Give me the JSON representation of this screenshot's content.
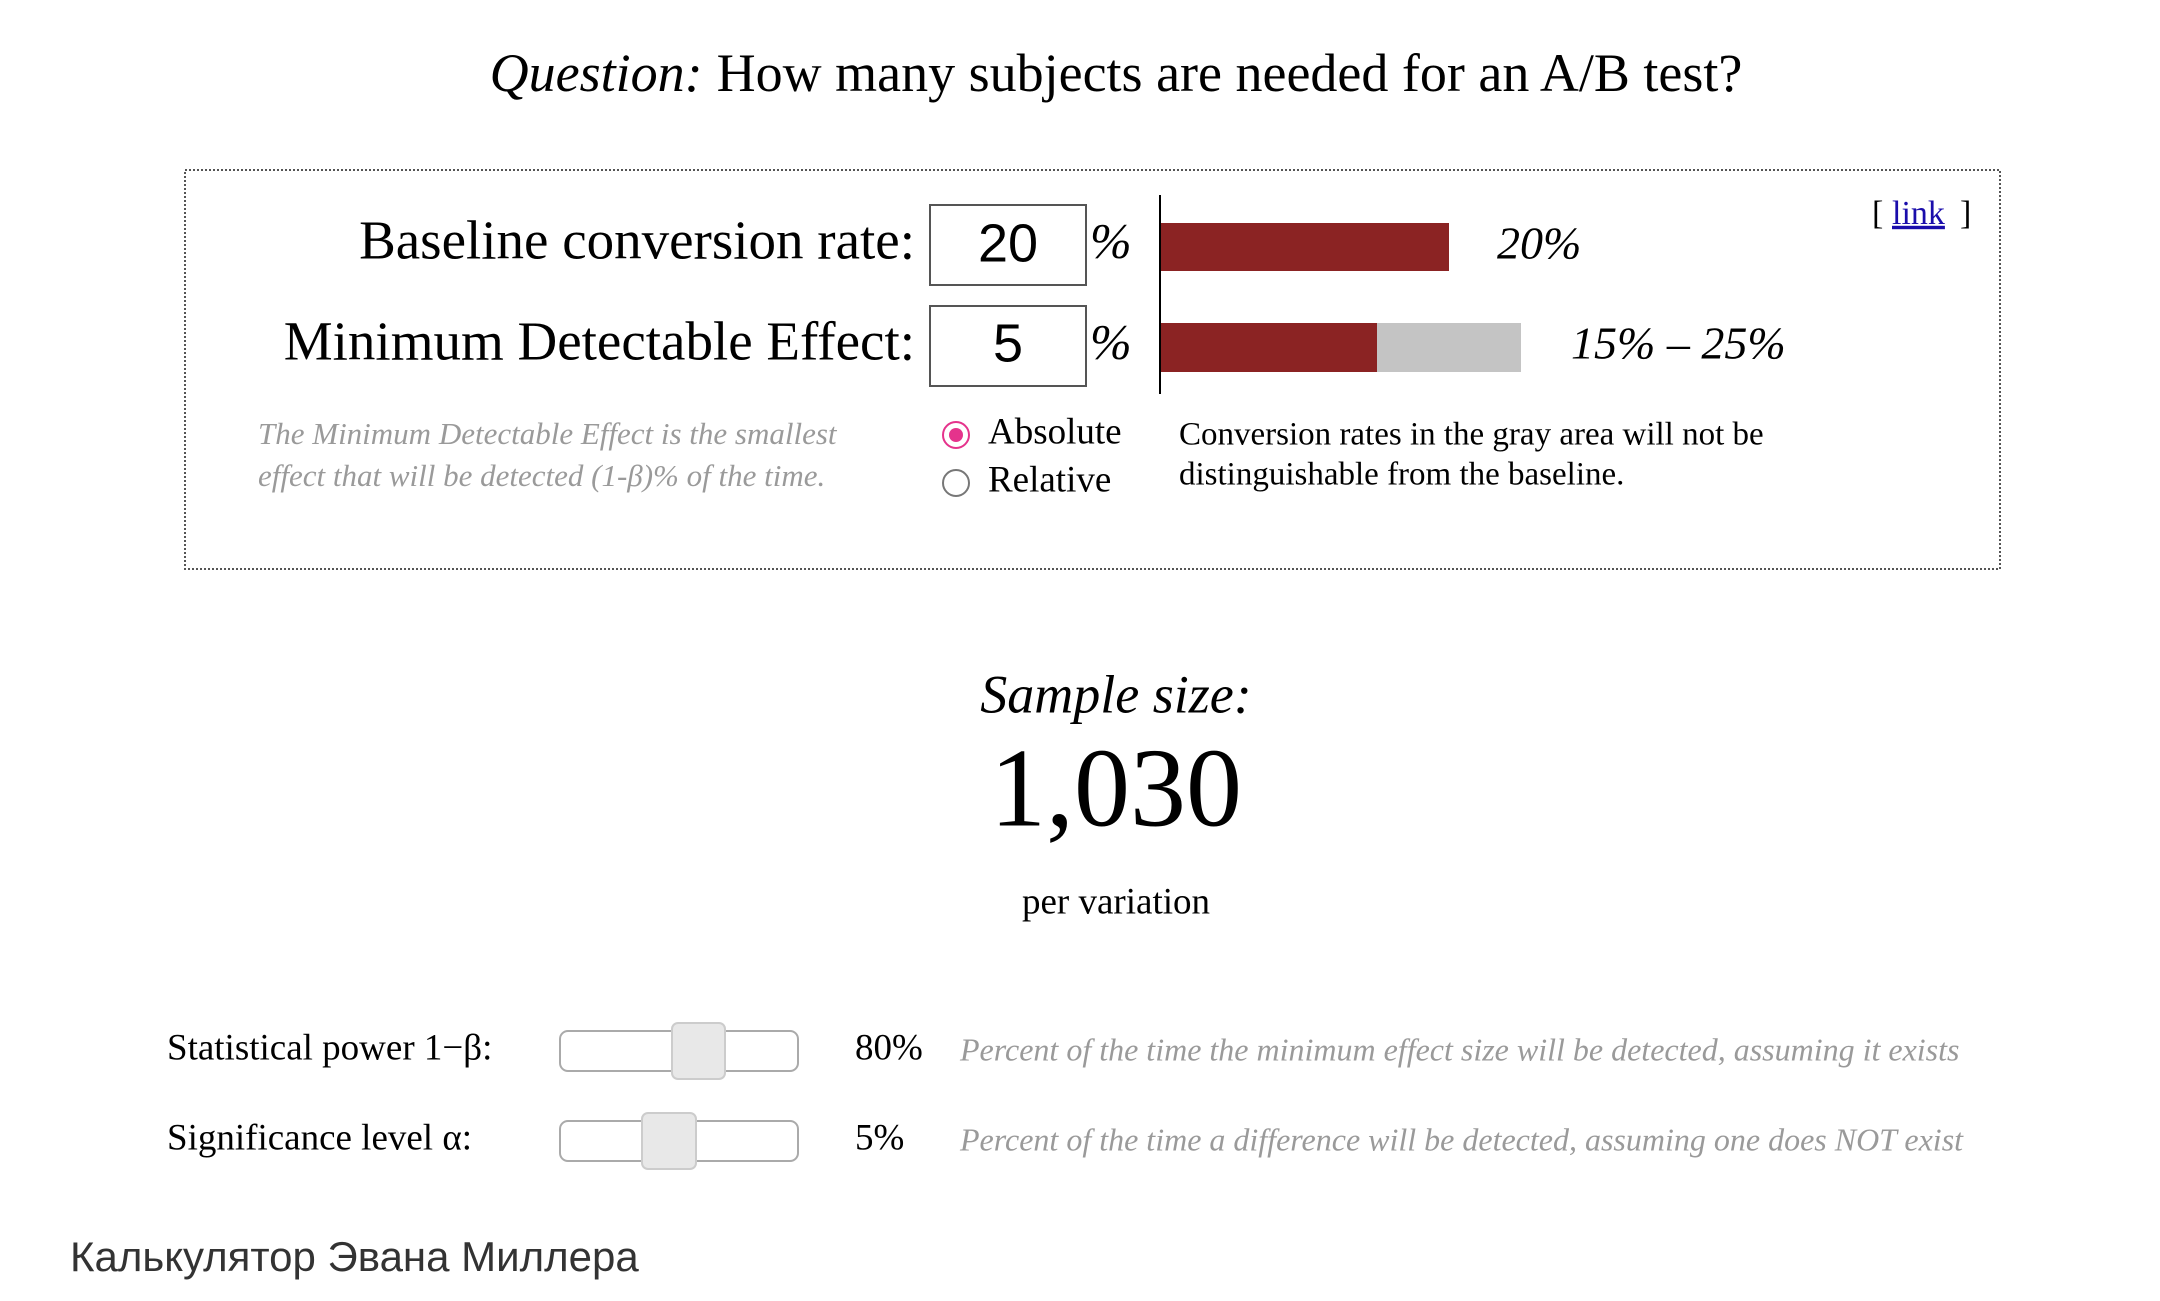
{
  "title": {
    "prefix": "Question:",
    "text": "How many subjects are needed for an A/B test?"
  },
  "link": {
    "open": "[",
    "text": "link",
    "close": "]"
  },
  "baseline": {
    "label": "Baseline conversion rate:",
    "value": 20,
    "unit": "%",
    "bar_label": "20%"
  },
  "mde": {
    "label": "Minimum Detectable Effect:",
    "value": 5,
    "unit": "%",
    "bar_label": "15% – 25%"
  },
  "mde_note": [
    "The Minimum Detectable Effect is the smallest",
    "effect that will be detected (1-β)% of the time."
  ],
  "mode_options": [
    {
      "label": "Absolute",
      "selected": true
    },
    {
      "label": "Relative",
      "selected": false
    }
  ],
  "gray_note": [
    "Conversion rates in the gray area will not be",
    "distinguishable from the baseline."
  ],
  "result": {
    "heading": "Sample size:",
    "value": "1,030",
    "unit": "per variation"
  },
  "parameters": [
    {
      "label": "Statistical power 1−β:",
      "value": "80%",
      "description": "Percent of the time the minimum effect size will be detected, assuming it exists"
    },
    {
      "label": "Significance level α:",
      "value": "5%",
      "description": "Percent of the time a difference will be detected, assuming one does NOT exist"
    }
  ],
  "caption": "Калькулятор Эвана Миллера"
}
